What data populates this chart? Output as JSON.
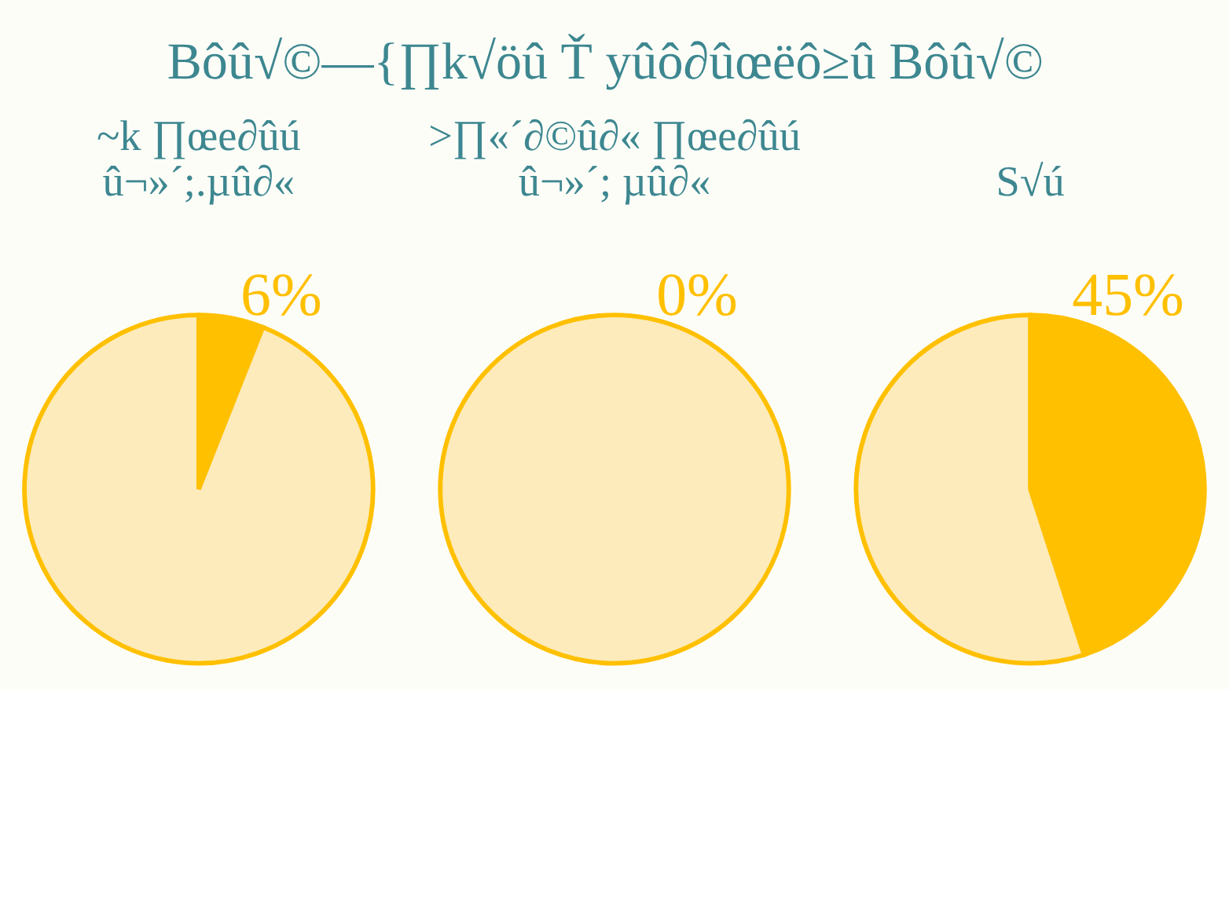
{
  "chart_data": [
    {
      "type": "other",
      "title": "Bôû√©—{∏k√öû Ť yûô∂ûœëô≥û Bôû√©"
    },
    {
      "type": "pie",
      "title": [
        "~k ∏œe∂ûú",
        "û¬»´;.µû∂«"
      ],
      "categories": [
        null,
        null
      ],
      "values": [
        6,
        94
      ],
      "colors": [
        "#ffc000",
        "#fdebbb"
      ],
      "value_labels": [
        "6%",
        null
      ]
    },
    {
      "type": "pie",
      "title": [
        ">∏«´∂©û∂« ∏œe∂ûú",
        "û¬»´; µû∂«"
      ],
      "categories": [
        null,
        null
      ],
      "values": [
        0,
        100
      ],
      "colors": [
        "#ffc000",
        "#fdebbb"
      ],
      "value_labels": [
        "0%",
        null
      ]
    },
    {
      "type": "pie",
      "title": [
        "S√ú"
      ],
      "categories": [
        null,
        null
      ],
      "values": [
        45,
        55
      ],
      "colors": [
        "#ffc000",
        "#fdebbb"
      ],
      "value_labels": [
        "45%",
        null
      ]
    }
  ]
}
